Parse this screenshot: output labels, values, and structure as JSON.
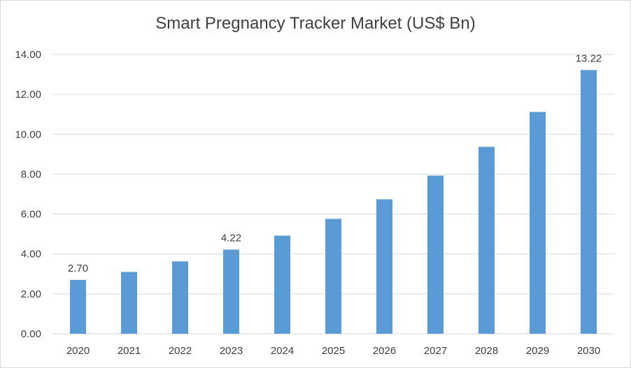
{
  "chart_data": {
    "type": "bar",
    "title": "Smart Pregnancy Tracker Market (US$ Bn)",
    "xlabel": "",
    "ylabel": "",
    "categories": [
      "2020",
      "2021",
      "2022",
      "2023",
      "2024",
      "2025",
      "2026",
      "2027",
      "2028",
      "2029",
      "2030"
    ],
    "series": [
      {
        "values": [
          2.7,
          3.1,
          3.63,
          4.22,
          4.92,
          5.76,
          6.74,
          7.93,
          9.37,
          11.12,
          13.22
        ]
      }
    ],
    "data_labels": [
      {
        "index": 0,
        "text": "2.70"
      },
      {
        "index": 3,
        "text": "4.22"
      },
      {
        "index": 10,
        "text": "13.22"
      }
    ],
    "ylim": [
      0,
      14
    ],
    "yticks": [
      "0.00",
      "2.00",
      "4.00",
      "6.00",
      "8.00",
      "10.00",
      "12.00",
      "14.00"
    ],
    "grid": true,
    "legend": "none",
    "bar_color": "#5b9bd5",
    "grid_color": "#d9d9d9"
  }
}
